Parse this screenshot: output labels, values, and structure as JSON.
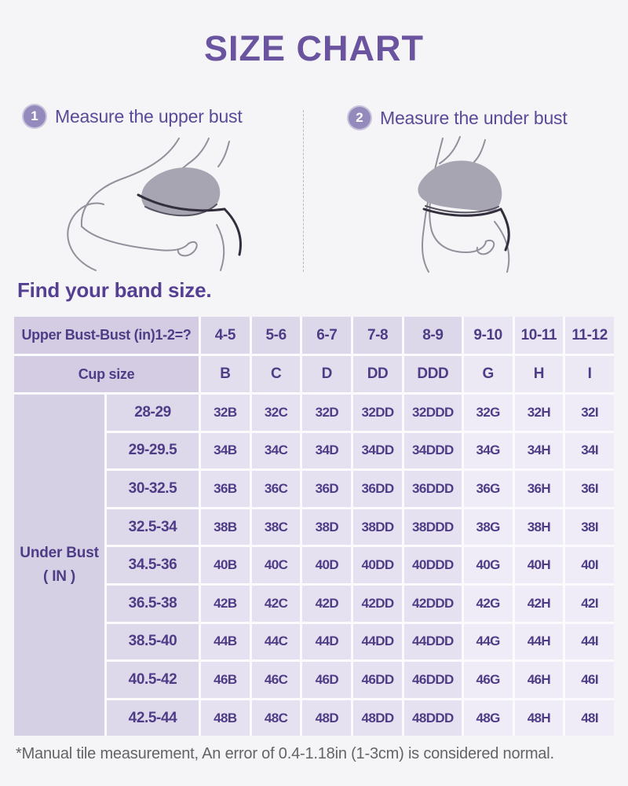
{
  "page": {
    "title": "SIZE CHART",
    "footnote": "*Manual tile measurement, An error of 0.4-1.18in (1-3cm) is considered normal."
  },
  "steps": [
    {
      "number": "1",
      "label": "Measure the upper bust"
    },
    {
      "number": "2",
      "label": "Measure the under bust"
    }
  ],
  "section": {
    "heading": "Find your band size."
  },
  "table": {
    "corner_row1": "Upper Bust-Bust (in)1-2=?",
    "corner_row2": "Cup size",
    "diff_headers": [
      "4-5",
      "5-6",
      "6-7",
      "7-8",
      "8-9",
      "9-10",
      "10-11",
      "11-12"
    ],
    "cup_headers": [
      "B",
      "C",
      "D",
      "DD",
      "DDD",
      "G",
      "H",
      "I"
    ],
    "side_label_line1": "Under Bust",
    "side_label_line2": "( IN )",
    "rows": [
      {
        "under_bust": "28-29",
        "cells": [
          "32B",
          "32C",
          "32D",
          "32DD",
          "32DDD",
          "32G",
          "32H",
          "32I"
        ]
      },
      {
        "under_bust": "29-29.5",
        "cells": [
          "34B",
          "34C",
          "34D",
          "34DD",
          "34DDD",
          "34G",
          "34H",
          "34I"
        ]
      },
      {
        "under_bust": "30-32.5",
        "cells": [
          "36B",
          "36C",
          "36D",
          "36DD",
          "36DDD",
          "36G",
          "36H",
          "36I"
        ]
      },
      {
        "under_bust": "32.5-34",
        "cells": [
          "38B",
          "38C",
          "38D",
          "38DD",
          "38DDD",
          "38G",
          "38H",
          "38I"
        ]
      },
      {
        "under_bust": "34.5-36",
        "cells": [
          "40B",
          "40C",
          "40D",
          "40DD",
          "40DDD",
          "40G",
          "40H",
          "40I"
        ]
      },
      {
        "under_bust": "36.5-38",
        "cells": [
          "42B",
          "42C",
          "42D",
          "42DD",
          "42DDD",
          "42G",
          "42H",
          "42I"
        ]
      },
      {
        "under_bust": "38.5-40",
        "cells": [
          "44B",
          "44C",
          "44D",
          "44DD",
          "44DDD",
          "44G",
          "44H",
          "44I"
        ]
      },
      {
        "under_bust": "40.5-42",
        "cells": [
          "46B",
          "46C",
          "46D",
          "46DD",
          "46DDD",
          "46G",
          "46H",
          "46I"
        ]
      },
      {
        "under_bust": "42.5-44",
        "cells": [
          "48B",
          "48C",
          "48D",
          "48DD",
          "48DDD",
          "48G",
          "48H",
          "48I"
        ]
      }
    ]
  },
  "colors": {
    "accent_purple": "#6a54a0",
    "table_text_purple": "#4e3d86",
    "step_circle": "#948abb",
    "tape_line": "#332e3d",
    "cell_lavender_dark": "#d3cce2",
    "cell_lavender_light": "#efecf7"
  },
  "icons": {
    "step_1_badge": "circled number 1",
    "step_2_badge": "circled number 2"
  }
}
